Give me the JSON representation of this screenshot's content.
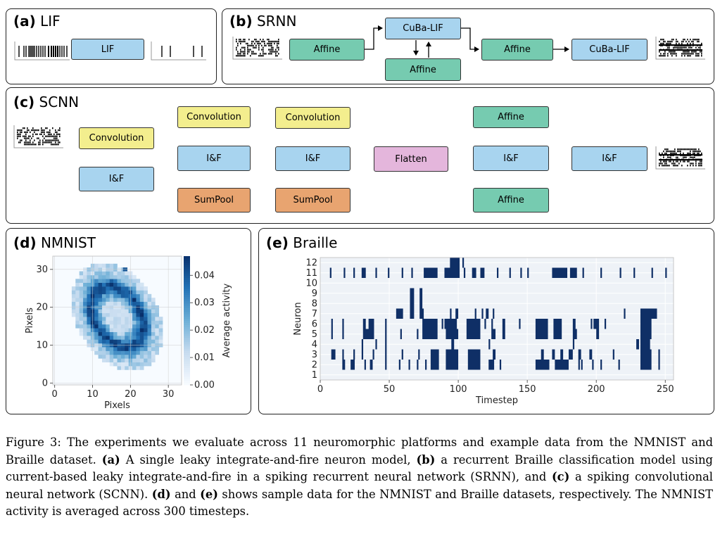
{
  "panels": {
    "a": {
      "letter": "(a)",
      "name": "LIF",
      "box": "LIF"
    },
    "b": {
      "letter": "(b)",
      "name": "SRNN",
      "affine1": "Affine",
      "cuba1": "CuBa-LIF",
      "affine_rec": "Affine",
      "affine2": "Affine",
      "cuba2": "CuBa-LIF"
    },
    "c": {
      "letter": "(c)",
      "name": "SCNN",
      "conv1": "Convolution",
      "if1": "I&F",
      "conv2": "Convolution",
      "if2": "I&F",
      "pool1": "SumPool",
      "conv3": "Convolution",
      "if3": "I&F",
      "pool2": "SumPool",
      "flatten": "Flatten",
      "affine1": "Affine",
      "if4": "I&F",
      "affine2": "Affine",
      "if5": "I&F"
    },
    "d": {
      "letter": "(d)",
      "name": "NMNIST",
      "xlabel": "Pixels",
      "ylabel": "Pixels",
      "cbar_label": "Average activity",
      "xticks": [
        "0",
        "10",
        "20",
        "30"
      ],
      "yticks": [
        "0",
        "10",
        "20",
        "30"
      ],
      "cbar_ticks": [
        "0.00",
        "0.01",
        "0.02",
        "0.03",
        "0.04"
      ]
    },
    "e": {
      "letter": "(e)",
      "name": "Braille",
      "xlabel": "Timestep",
      "ylabel": "Neuron",
      "xticks": [
        "0",
        "50",
        "100",
        "150",
        "200",
        "250"
      ],
      "yticks": [
        "1",
        "2",
        "3",
        "4",
        "5",
        "6",
        "7",
        "8",
        "9",
        "10",
        "11",
        "12"
      ]
    }
  },
  "caption": {
    "lead": "Figure 3: The experiments we evaluate across 11 neuromorphic platforms and example data from the NMNIST and Braille dataset.",
    "a_label": "(a)",
    "a_text": "A single leaky integrate-and-fire neuron model,",
    "b_label": "(b)",
    "b_text": "a recurrent Braille classification model using current-based leaky integrate-and-fire in a spiking recurrent neural network (SRNN), and",
    "c_label": "(c)",
    "c_text": "a spiking convolutional neural network (SCNN).",
    "d_label": "(d)",
    "and_text": "and",
    "e_label": "(e)",
    "e_text": "shows sample data for the NMNIST and Braille datasets, respectively. The NMNIST activity is averaged across 300 timesteps."
  },
  "chart_data": [
    {
      "type": "heatmap",
      "panel": "d",
      "title": "NMNIST",
      "xlabel": "Pixels",
      "ylabel": "Pixels",
      "xlim": [
        0,
        34
      ],
      "ylim": [
        0,
        34
      ],
      "colorbar": {
        "label": "Average activity",
        "range": [
          0,
          0.047
        ]
      },
      "description_values": {
        "ring_center": [
          17,
          17
        ],
        "peak": 0.045
      }
    },
    {
      "type": "scatter",
      "panel": "e",
      "title": "Braille",
      "xlabel": "Timestep",
      "ylabel": "Neuron",
      "xlim": [
        0,
        256
      ],
      "ylim": [
        0.5,
        12.5
      ],
      "series": [
        {
          "neuron": 12,
          "spikes": [
            [
              94,
              101
            ],
            [
              103,
              104
            ]
          ]
        },
        {
          "neuron": 11,
          "spikes": [
            [
              7,
              8
            ],
            [
              17,
              18
            ],
            [
              24,
              25
            ],
            [
              30,
              33
            ],
            [
              40,
              41
            ],
            [
              49,
              50
            ],
            [
              59,
              60
            ],
            [
              66,
              67
            ],
            [
              75,
              85
            ],
            [
              90,
              101
            ],
            [
              104,
              105
            ],
            [
              110,
              113
            ],
            [
              116,
              119
            ],
            [
              128,
              129
            ],
            [
              137,
              138
            ],
            [
              145,
              146
            ],
            [
              150,
              151
            ],
            [
              168,
              179
            ],
            [
              181,
              186
            ],
            [
              190,
              191
            ],
            [
              203,
              204
            ],
            [
              217,
              218
            ],
            [
              227,
              228
            ],
            [
              240,
              241
            ],
            [
              250,
              251
            ]
          ]
        },
        {
          "neuron": 10,
          "spikes": []
        },
        {
          "neuron": 9,
          "spikes": [
            [
              65,
              68
            ],
            [
              72,
              74
            ]
          ]
        },
        {
          "neuron": 8,
          "spikes": [
            [
              65,
              68
            ],
            [
              72,
              74
            ]
          ]
        },
        {
          "neuron": 7,
          "spikes": [
            [
              55,
              60
            ],
            [
              65,
              68
            ],
            [
              72,
              75
            ],
            [
              94,
              95
            ],
            [
              98,
              100
            ],
            [
              112,
              113
            ],
            [
              117,
              118
            ],
            [
              120,
              122
            ],
            [
              125,
              126
            ],
            [
              220,
              221
            ],
            [
              232,
              244
            ]
          ]
        },
        {
          "neuron": 6,
          "spikes": [
            [
              8,
              9
            ],
            [
              16,
              17
            ],
            [
              31,
              33
            ],
            [
              35,
              39
            ],
            [
              47,
              48
            ],
            [
              74,
              85
            ],
            [
              88,
              89
            ],
            [
              90,
              99
            ],
            [
              106,
              116
            ],
            [
              119,
              120
            ],
            [
              124,
              125
            ],
            [
              132,
              134
            ],
            [
              144,
              145
            ],
            [
              156,
              165
            ],
            [
              169,
              175
            ],
            [
              183,
              185
            ],
            [
              196,
              197
            ],
            [
              198,
              202
            ],
            [
              206,
              207
            ],
            [
              232,
              240
            ]
          ]
        },
        {
          "neuron": 5,
          "spikes": [
            [
              8,
              9
            ],
            [
              16,
              17
            ],
            [
              31,
              39
            ],
            [
              47,
              48
            ],
            [
              58,
              59
            ],
            [
              70,
              71
            ],
            [
              74,
              85
            ],
            [
              91,
              100
            ],
            [
              106,
              116
            ],
            [
              124,
              127
            ],
            [
              132,
              134
            ],
            [
              156,
              165
            ],
            [
              169,
              175
            ],
            [
              183,
              186
            ],
            [
              200,
              202
            ],
            [
              232,
              240
            ]
          ]
        },
        {
          "neuron": 4,
          "spikes": [
            [
              30,
              31
            ],
            [
              40,
              41
            ],
            [
              47,
              48
            ],
            [
              95,
              97
            ],
            [
              122,
              123
            ],
            [
              183,
              184
            ],
            [
              229,
              231
            ],
            [
              232,
              239
            ]
          ]
        },
        {
          "neuron": 3,
          "spikes": [
            [
              8,
              11
            ],
            [
              16,
              17
            ],
            [
              24,
              25
            ],
            [
              30,
              31
            ],
            [
              38,
              39
            ],
            [
              47,
              48
            ],
            [
              59,
              60
            ],
            [
              71,
              72
            ],
            [
              80,
              86
            ],
            [
              91,
              100
            ],
            [
              107,
              116
            ],
            [
              125,
              127
            ],
            [
              160,
              162
            ],
            [
              168,
              170
            ],
            [
              174,
              176
            ],
            [
              180,
              183
            ],
            [
              187,
              189
            ],
            [
              195,
              197
            ],
            [
              212,
              213
            ],
            [
              232,
              240
            ],
            [
              245,
              246
            ]
          ]
        },
        {
          "neuron": 2,
          "spikes": [
            [
              16,
              18
            ],
            [
              22,
              25
            ],
            [
              32,
              33
            ],
            [
              36,
              38
            ],
            [
              47,
              48
            ],
            [
              57,
              58
            ],
            [
              64,
              65
            ],
            [
              70,
              71
            ],
            [
              76,
              77
            ],
            [
              80,
              86
            ],
            [
              91,
              100
            ],
            [
              107,
              116
            ],
            [
              122,
              126
            ],
            [
              130,
              131
            ],
            [
              156,
              166
            ],
            [
              170,
              180
            ],
            [
              187,
              188
            ],
            [
              189,
              190
            ],
            [
              197,
              198
            ],
            [
              203,
              204
            ],
            [
              216,
              217
            ],
            [
              232,
              240
            ],
            [
              245,
              246
            ]
          ]
        },
        {
          "neuron": 1,
          "spikes": []
        }
      ]
    }
  ]
}
